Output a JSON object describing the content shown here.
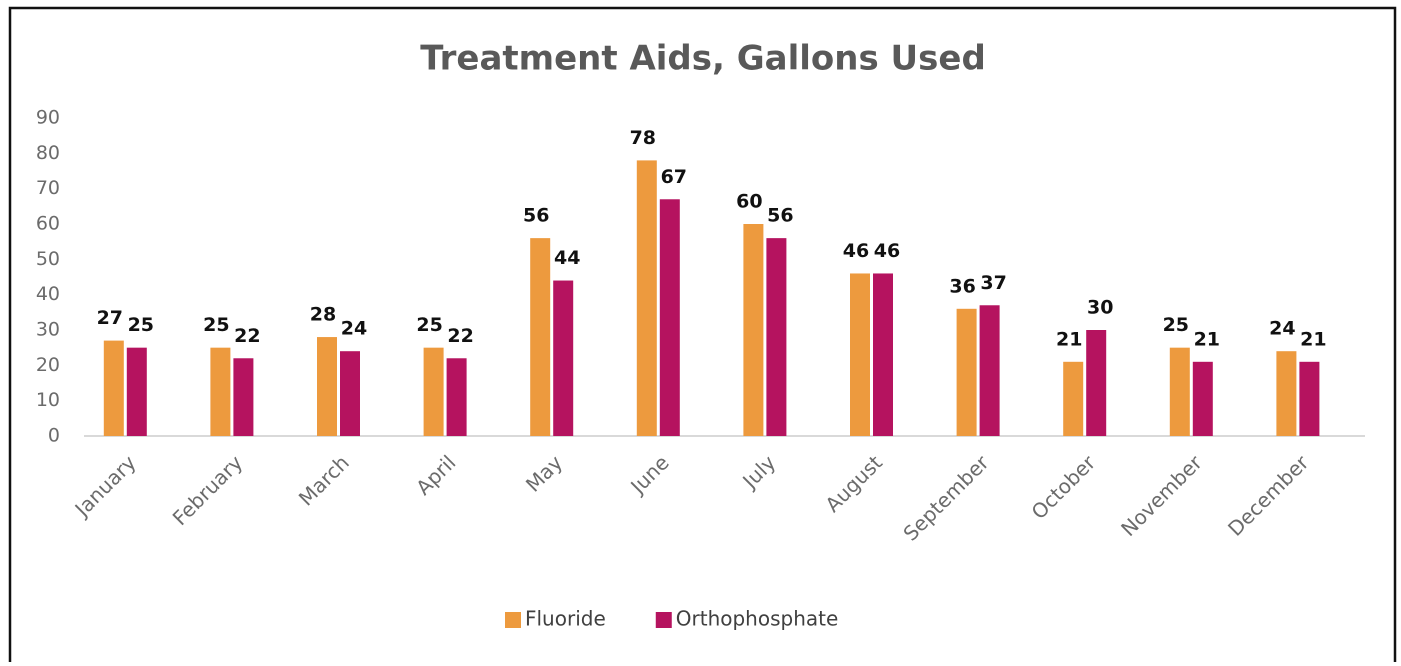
{
  "chart_data": {
    "type": "bar",
    "title": "Treatment Aids, Gallons Used",
    "categories": [
      "January",
      "February",
      "March",
      "April",
      "May",
      "June",
      "July",
      "August",
      "September",
      "October",
      "November",
      "December"
    ],
    "series": [
      {
        "name": "Fluoride",
        "color": "#ed9a3e",
        "values": [
          27,
          25,
          28,
          25,
          56,
          78,
          60,
          46,
          36,
          21,
          25,
          24
        ]
      },
      {
        "name": "Orthophosphate",
        "color": "#b5135f",
        "values": [
          25,
          22,
          24,
          22,
          44,
          67,
          56,
          46,
          37,
          30,
          21,
          21
        ]
      }
    ],
    "ylim": [
      0,
      90
    ],
    "yticks": [
      0,
      10,
      20,
      30,
      40,
      50,
      60,
      70,
      80,
      90
    ],
    "grid": false,
    "legend": "bottom"
  }
}
